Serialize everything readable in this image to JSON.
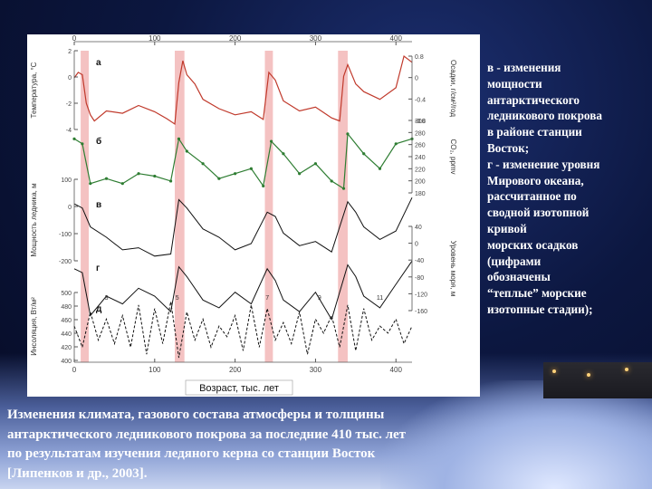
{
  "description_lines": [
    "в - изменения",
    "мощности",
    "антарктического",
    "ледникового покрова",
    "в районе станции",
    "Восток;",
    "г - изменение уровня",
    "Мирового океана,",
    "рассчитанное по",
    "сводной изотопной",
    "кривой",
    "морских осадков",
    "(цифрами",
    "обозначены",
    "“теплые” морские",
    "изотопные стадии);"
  ],
  "caption_lines": [
    "Изменения климата, газового состава атмосферы и толщины",
    "антарктического ледникового покрова за последние 410 тыс. лет",
    "по результатам изучения ледяного керна со станции Восток",
    "[Липенков и др., 2003]."
  ],
  "chart_data": {
    "type": "line",
    "xlabel": "Возраст, тыс. лет",
    "x_ticks_top": [
      "0",
      "100",
      "200",
      "300",
      "400"
    ],
    "x_ticks_bottom": [
      "0",
      "100",
      "200",
      "300",
      "400"
    ],
    "xlim": [
      0,
      420
    ],
    "interglacial_bands": [
      [
        8,
        18
      ],
      [
        125,
        137
      ],
      [
        237,
        247
      ],
      [
        328,
        340
      ]
    ],
    "colors": {
      "temperature": "#c0392b",
      "co2": "#2e7d32",
      "thickness": "#111111",
      "sea_level": "#111111",
      "insolation": "#111111",
      "band": "#f4c2c2"
    },
    "panels": [
      {
        "letter": "а",
        "ylabel": "Температура, °С",
        "y_ticks": [
          "2",
          "0",
          "-2",
          "-4"
        ],
        "right_ylabel": "Осадки, г/см²/год",
        "right_ticks": [
          "0.8",
          "0",
          "-0.4",
          "-0.8"
        ],
        "x": [
          0,
          5,
          10,
          15,
          20,
          25,
          40,
          60,
          80,
          100,
          115,
          125,
          130,
          135,
          140,
          150,
          160,
          180,
          200,
          220,
          235,
          242,
          250,
          260,
          280,
          300,
          320,
          330,
          335,
          340,
          350,
          360,
          380,
          400,
          410,
          420
        ],
        "y": [
          -1.2,
          -0.5,
          -0.8,
          -4.5,
          -6.0,
          -6.8,
          -5.5,
          -5.8,
          -4.8,
          -5.6,
          -6.5,
          -7.2,
          -1.8,
          1.0,
          -0.8,
          -2.0,
          -4.0,
          -5.2,
          -6.0,
          -5.6,
          -6.6,
          -0.5,
          -1.5,
          -4.2,
          -5.5,
          -5.0,
          -6.4,
          -6.8,
          -1.0,
          0.5,
          -2.0,
          -3.0,
          -4.0,
          -2.5,
          1.6,
          0.8
        ]
      },
      {
        "letter": "б",
        "ylabel": "",
        "y_ticks": [],
        "right_ylabel": "CO₂, ppmv",
        "right_ticks": [
          "300",
          "280",
          "260",
          "240",
          "220",
          "200",
          "180"
        ],
        "x": [
          0,
          10,
          20,
          40,
          60,
          80,
          100,
          120,
          130,
          140,
          160,
          180,
          200,
          220,
          235,
          245,
          260,
          280,
          300,
          320,
          335,
          340,
          360,
          380,
          400,
          420
        ],
        "y": [
          280,
          270,
          190,
          200,
          190,
          210,
          205,
          195,
          280,
          255,
          230,
          200,
          210,
          220,
          185,
          275,
          250,
          210,
          230,
          195,
          180,
          290,
          250,
          220,
          270,
          280
        ]
      },
      {
        "letter": "в",
        "ylabel": "Мощность ледника, м",
        "y_ticks": [
          "100",
          "0",
          "-100",
          "-200"
        ],
        "right_ylabel": "",
        "right_ticks": [],
        "x": [
          0,
          10,
          20,
          40,
          60,
          80,
          100,
          120,
          130,
          140,
          160,
          180,
          200,
          220,
          240,
          250,
          260,
          280,
          300,
          320,
          340,
          350,
          360,
          380,
          400,
          420
        ],
        "y": [
          80,
          60,
          -30,
          -80,
          -140,
          -130,
          -170,
          -160,
          100,
          60,
          -40,
          -80,
          -140,
          -110,
          40,
          20,
          -60,
          -120,
          -100,
          -150,
          90,
          40,
          -30,
          -90,
          -50,
          110
        ]
      },
      {
        "letter": "г",
        "ylabel": "",
        "y_ticks": [],
        "right_ylabel": "Уровень моря, м",
        "right_ticks": [
          "40",
          "0",
          "-40",
          "-80",
          "-120",
          "-160"
        ],
        "stage_labels": [
          "3",
          "5",
          "7",
          "9",
          "11"
        ],
        "x": [
          0,
          10,
          20,
          40,
          60,
          80,
          100,
          120,
          130,
          140,
          160,
          180,
          200,
          220,
          240,
          250,
          260,
          280,
          300,
          320,
          340,
          350,
          360,
          380,
          400,
          420
        ],
        "y": [
          0,
          -10,
          -120,
          -70,
          -90,
          -50,
          -70,
          -110,
          5,
          -20,
          -80,
          -100,
          -60,
          -90,
          0,
          -30,
          -80,
          -110,
          -60,
          -130,
          10,
          -20,
          -70,
          -100,
          -40,
          20
        ]
      },
      {
        "letter": "д",
        "ylabel": "Инсоляция, Вт/м²",
        "y_ticks": [
          "500",
          "480",
          "460",
          "440",
          "420",
          "400"
        ],
        "right_ylabel": "",
        "right_ticks": [],
        "x": [
          0,
          10,
          20,
          30,
          40,
          50,
          60,
          70,
          80,
          90,
          100,
          110,
          120,
          130,
          140,
          150,
          160,
          170,
          180,
          190,
          200,
          210,
          220,
          230,
          240,
          250,
          260,
          270,
          280,
          290,
          300,
          310,
          320,
          330,
          340,
          350,
          360,
          370,
          380,
          390,
          400,
          410,
          420
        ],
        "y": [
          470,
          440,
          490,
          450,
          480,
          445,
          485,
          440,
          500,
          430,
          495,
          445,
          505,
          425,
          490,
          450,
          480,
          440,
          470,
          455,
          485,
          435,
          500,
          440,
          495,
          450,
          475,
          445,
          490,
          430,
          480,
          460,
          485,
          440,
          500,
          435,
          495,
          450,
          470,
          460,
          480,
          445,
          470
        ]
      }
    ]
  }
}
